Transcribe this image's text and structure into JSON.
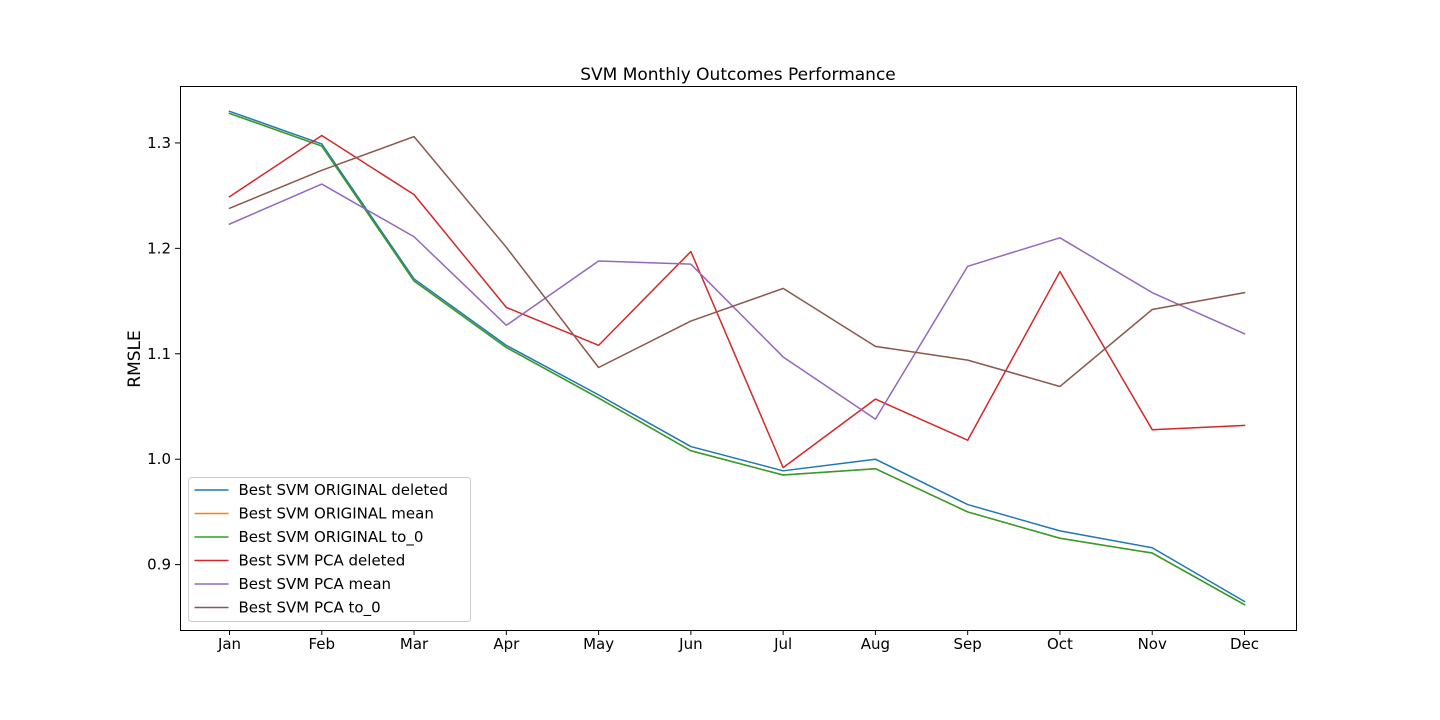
{
  "chart_data": {
    "type": "line",
    "title": "SVM Monthly Outcomes Performance",
    "xlabel": "",
    "ylabel": "RMSLE",
    "categories": [
      "Jan",
      "Feb",
      "Mar",
      "Apr",
      "May",
      "Jun",
      "Jul",
      "Aug",
      "Sep",
      "Oct",
      "Nov",
      "Dec"
    ],
    "ylim": [
      0.838,
      1.354
    ],
    "yticks": [
      0.9,
      1.0,
      1.1,
      1.2,
      1.3
    ],
    "ytick_labels": [
      "0.9",
      "1.0",
      "1.1",
      "1.2",
      "1.3"
    ],
    "grid": false,
    "legend_position": "lower-left",
    "series": [
      {
        "name": "Best SVM ORIGINAL deleted",
        "color": "#1f77b4",
        "values": [
          1.33,
          1.299,
          1.171,
          1.108,
          1.061,
          1.012,
          0.989,
          1.0,
          0.957,
          0.932,
          0.916,
          0.865
        ]
      },
      {
        "name": "Best SVM ORIGINAL mean",
        "color": "#ff7f0e",
        "values": [
          1.328,
          1.297,
          1.169,
          1.106,
          1.058,
          1.008,
          0.985,
          0.991,
          0.95,
          0.925,
          0.911,
          0.862
        ]
      },
      {
        "name": "Best SVM ORIGINAL to_0",
        "color": "#2ca02c",
        "values": [
          1.328,
          1.297,
          1.169,
          1.106,
          1.058,
          1.008,
          0.985,
          0.991,
          0.95,
          0.925,
          0.911,
          0.862
        ]
      },
      {
        "name": "Best SVM PCA deleted",
        "color": "#d62728",
        "values": [
          1.249,
          1.307,
          1.251,
          1.144,
          1.108,
          1.197,
          0.992,
          1.057,
          1.018,
          1.178,
          1.028,
          1.032
        ]
      },
      {
        "name": "Best SVM PCA mean",
        "color": "#9467bd",
        "values": [
          1.223,
          1.261,
          1.211,
          1.127,
          1.188,
          1.185,
          1.097,
          1.038,
          1.183,
          1.21,
          1.158,
          1.119
        ]
      },
      {
        "name": "Best SVM PCA to_0",
        "color": "#8c564b",
        "values": [
          1.238,
          1.274,
          1.306,
          1.201,
          1.087,
          1.131,
          1.162,
          1.107,
          1.094,
          1.069,
          1.142,
          1.158
        ]
      }
    ]
  }
}
